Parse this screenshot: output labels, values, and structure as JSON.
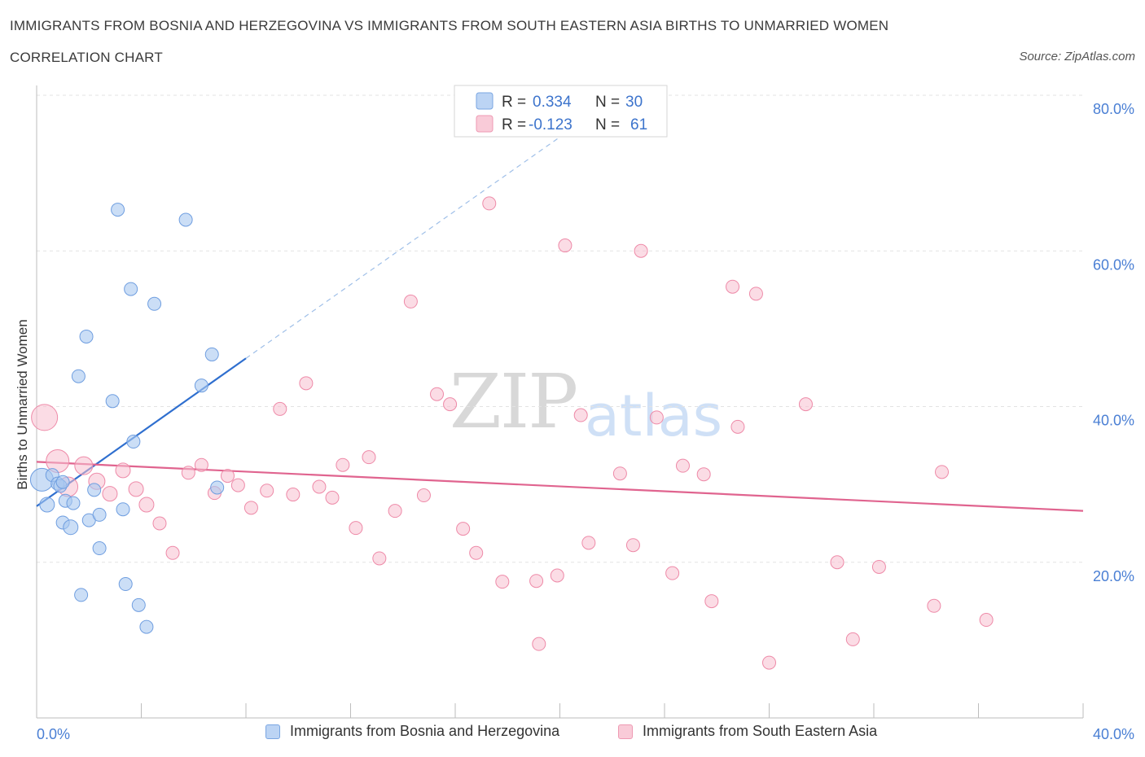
{
  "title": "IMMIGRANTS FROM BOSNIA AND HERZEGOVINA VS IMMIGRANTS FROM SOUTH EASTERN ASIA BIRTHS TO UNMARRIED WOMEN",
  "subtitle": "CORRELATION CHART",
  "source": "Source: ZipAtlas.com",
  "watermark": {
    "zip": "ZIP",
    "atlas": "atlas"
  },
  "legend": {
    "r_label": "R =",
    "n_label": "N =",
    "rows": [
      {
        "r": "0.334",
        "n": "30"
      },
      {
        "r": "-0.123",
        "n": "61"
      }
    ]
  },
  "bottom_legend": {
    "series1": "Immigrants from Bosnia and Herzegovina",
    "series2": "Immigrants from South Eastern Asia"
  },
  "colors": {
    "blue_fill": "#a9c8f0",
    "blue_stroke": "#6f9ee0",
    "blue_line": "#2f6fcf",
    "pink_fill": "#f7bfcf",
    "pink_stroke": "#ee8aa8",
    "pink_line": "#e0648f",
    "tick_text": "#4a7fd4"
  },
  "chart_data": {
    "type": "scatter",
    "title": "IMMIGRANTS FROM BOSNIA AND HERZEGOVINA VS IMMIGRANTS FROM SOUTH EASTERN ASIA BIRTHS TO UNMARRIED WOMEN",
    "xlabel": "",
    "ylabel": "Births to Unmarried Women",
    "xlim": [
      0,
      40
    ],
    "ylim": [
      0,
      80
    ],
    "x_tick_labels": {
      "left": "0.0%",
      "right": "40.0%"
    },
    "y_ticks": [
      {
        "value": 80,
        "label": "80.0%"
      },
      {
        "value": 60,
        "label": "60.0%"
      },
      {
        "value": 40,
        "label": "40.0%"
      },
      {
        "value": 20,
        "label": "20.0%"
      }
    ],
    "x_tick_marks": [
      0,
      4,
      8,
      12,
      16,
      20,
      24,
      28,
      32,
      36,
      40
    ],
    "series": [
      {
        "name": "Immigrants from Bosnia and Herzegovina",
        "color": "blue",
        "trend": {
          "x0": 0.0,
          "y0": 27.2,
          "x1": 8.0,
          "y1": 46.2,
          "dash_x1": 21.0,
          "dash_y1": 77.0
        },
        "points": [
          {
            "x": 0.2,
            "y": 30.6,
            "r": 14
          },
          {
            "x": 0.4,
            "y": 27.4,
            "r": 9
          },
          {
            "x": 0.6,
            "y": 31.2,
            "r": 8
          },
          {
            "x": 0.8,
            "y": 30.1,
            "r": 8
          },
          {
            "x": 0.9,
            "y": 29.8,
            "r": 8
          },
          {
            "x": 1.0,
            "y": 25.1,
            "r": 8
          },
          {
            "x": 1.1,
            "y": 27.9,
            "r": 8
          },
          {
            "x": 1.3,
            "y": 24.5,
            "r": 9
          },
          {
            "x": 1.4,
            "y": 27.6,
            "r": 8
          },
          {
            "x": 1.6,
            "y": 43.9,
            "r": 8
          },
          {
            "x": 1.9,
            "y": 49.0,
            "r": 8
          },
          {
            "x": 2.0,
            "y": 25.4,
            "r": 8
          },
          {
            "x": 2.2,
            "y": 29.3,
            "r": 8
          },
          {
            "x": 2.4,
            "y": 21.8,
            "r": 8
          },
          {
            "x": 2.4,
            "y": 26.1,
            "r": 8
          },
          {
            "x": 1.7,
            "y": 15.8,
            "r": 8
          },
          {
            "x": 2.9,
            "y": 40.7,
            "r": 8
          },
          {
            "x": 3.1,
            "y": 65.3,
            "r": 8
          },
          {
            "x": 3.3,
            "y": 26.8,
            "r": 8
          },
          {
            "x": 3.4,
            "y": 17.2,
            "r": 8
          },
          {
            "x": 3.6,
            "y": 55.1,
            "r": 8
          },
          {
            "x": 3.7,
            "y": 35.5,
            "r": 8
          },
          {
            "x": 3.9,
            "y": 14.5,
            "r": 8
          },
          {
            "x": 4.2,
            "y": 11.7,
            "r": 8
          },
          {
            "x": 4.5,
            "y": 53.2,
            "r": 8
          },
          {
            "x": 5.7,
            "y": 64.0,
            "r": 8
          },
          {
            "x": 6.3,
            "y": 42.7,
            "r": 8
          },
          {
            "x": 6.7,
            "y": 46.7,
            "r": 8
          },
          {
            "x": 6.9,
            "y": 29.6,
            "r": 8
          },
          {
            "x": 1.0,
            "y": 30.3,
            "r": 8
          }
        ]
      },
      {
        "name": "Immigrants from South Eastern Asia",
        "color": "pink",
        "trend": {
          "x0": 0.0,
          "y0": 32.9,
          "x1": 40.0,
          "y1": 26.6
        },
        "points": [
          {
            "x": 0.3,
            "y": 38.6,
            "r": 16
          },
          {
            "x": 0.8,
            "y": 33.0,
            "r": 14
          },
          {
            "x": 1.2,
            "y": 29.7,
            "r": 12
          },
          {
            "x": 1.8,
            "y": 32.4,
            "r": 11
          },
          {
            "x": 2.3,
            "y": 30.4,
            "r": 10
          },
          {
            "x": 2.8,
            "y": 28.8,
            "r": 9
          },
          {
            "x": 3.3,
            "y": 31.8,
            "r": 9
          },
          {
            "x": 3.8,
            "y": 29.4,
            "r": 9
          },
          {
            "x": 4.2,
            "y": 27.4,
            "r": 9
          },
          {
            "x": 4.7,
            "y": 25.0,
            "r": 8
          },
          {
            "x": 5.2,
            "y": 21.2,
            "r": 8
          },
          {
            "x": 5.8,
            "y": 31.5,
            "r": 8
          },
          {
            "x": 6.3,
            "y": 32.5,
            "r": 8
          },
          {
            "x": 6.8,
            "y": 28.9,
            "r": 8
          },
          {
            "x": 7.3,
            "y": 31.1,
            "r": 8
          },
          {
            "x": 7.7,
            "y": 29.9,
            "r": 8
          },
          {
            "x": 8.2,
            "y": 27.0,
            "r": 8
          },
          {
            "x": 8.8,
            "y": 29.2,
            "r": 8
          },
          {
            "x": 9.3,
            "y": 39.7,
            "r": 8
          },
          {
            "x": 9.8,
            "y": 28.7,
            "r": 8
          },
          {
            "x": 10.3,
            "y": 43.0,
            "r": 8
          },
          {
            "x": 10.8,
            "y": 29.7,
            "r": 8
          },
          {
            "x": 11.3,
            "y": 28.3,
            "r": 8
          },
          {
            "x": 11.7,
            "y": 32.5,
            "r": 8
          },
          {
            "x": 12.2,
            "y": 24.4,
            "r": 8
          },
          {
            "x": 12.7,
            "y": 33.5,
            "r": 8
          },
          {
            "x": 13.1,
            "y": 20.5,
            "r": 8
          },
          {
            "x": 13.7,
            "y": 26.6,
            "r": 8
          },
          {
            "x": 14.3,
            "y": 53.5,
            "r": 8
          },
          {
            "x": 14.8,
            "y": 28.6,
            "r": 8
          },
          {
            "x": 15.3,
            "y": 41.6,
            "r": 8
          },
          {
            "x": 15.8,
            "y": 40.3,
            "r": 8
          },
          {
            "x": 16.3,
            "y": 24.3,
            "r": 8
          },
          {
            "x": 16.8,
            "y": 21.2,
            "r": 8
          },
          {
            "x": 17.3,
            "y": 66.1,
            "r": 8
          },
          {
            "x": 17.8,
            "y": 17.5,
            "r": 8
          },
          {
            "x": 19.1,
            "y": 17.6,
            "r": 8
          },
          {
            "x": 19.2,
            "y": 9.5,
            "r": 8
          },
          {
            "x": 19.9,
            "y": 18.3,
            "r": 8
          },
          {
            "x": 20.2,
            "y": 60.7,
            "r": 8
          },
          {
            "x": 20.8,
            "y": 38.9,
            "r": 8
          },
          {
            "x": 21.1,
            "y": 22.5,
            "r": 8
          },
          {
            "x": 22.3,
            "y": 31.4,
            "r": 8
          },
          {
            "x": 22.8,
            "y": 22.2,
            "r": 8
          },
          {
            "x": 23.1,
            "y": 60.0,
            "r": 8
          },
          {
            "x": 23.7,
            "y": 38.6,
            "r": 8
          },
          {
            "x": 24.3,
            "y": 18.6,
            "r": 8
          },
          {
            "x": 24.7,
            "y": 32.4,
            "r": 8
          },
          {
            "x": 25.5,
            "y": 31.3,
            "r": 8
          },
          {
            "x": 25.8,
            "y": 15.0,
            "r": 8
          },
          {
            "x": 26.6,
            "y": 55.4,
            "r": 8
          },
          {
            "x": 26.8,
            "y": 37.4,
            "r": 8
          },
          {
            "x": 27.5,
            "y": 54.5,
            "r": 8
          },
          {
            "x": 28.0,
            "y": 7.1,
            "r": 8
          },
          {
            "x": 29.4,
            "y": 40.3,
            "r": 8
          },
          {
            "x": 30.6,
            "y": 20.0,
            "r": 8
          },
          {
            "x": 31.2,
            "y": 10.1,
            "r": 8
          },
          {
            "x": 32.2,
            "y": 19.4,
            "r": 8
          },
          {
            "x": 34.3,
            "y": 14.4,
            "r": 8
          },
          {
            "x": 34.6,
            "y": 31.6,
            "r": 8
          },
          {
            "x": 36.3,
            "y": 12.6,
            "r": 8
          }
        ]
      }
    ]
  }
}
